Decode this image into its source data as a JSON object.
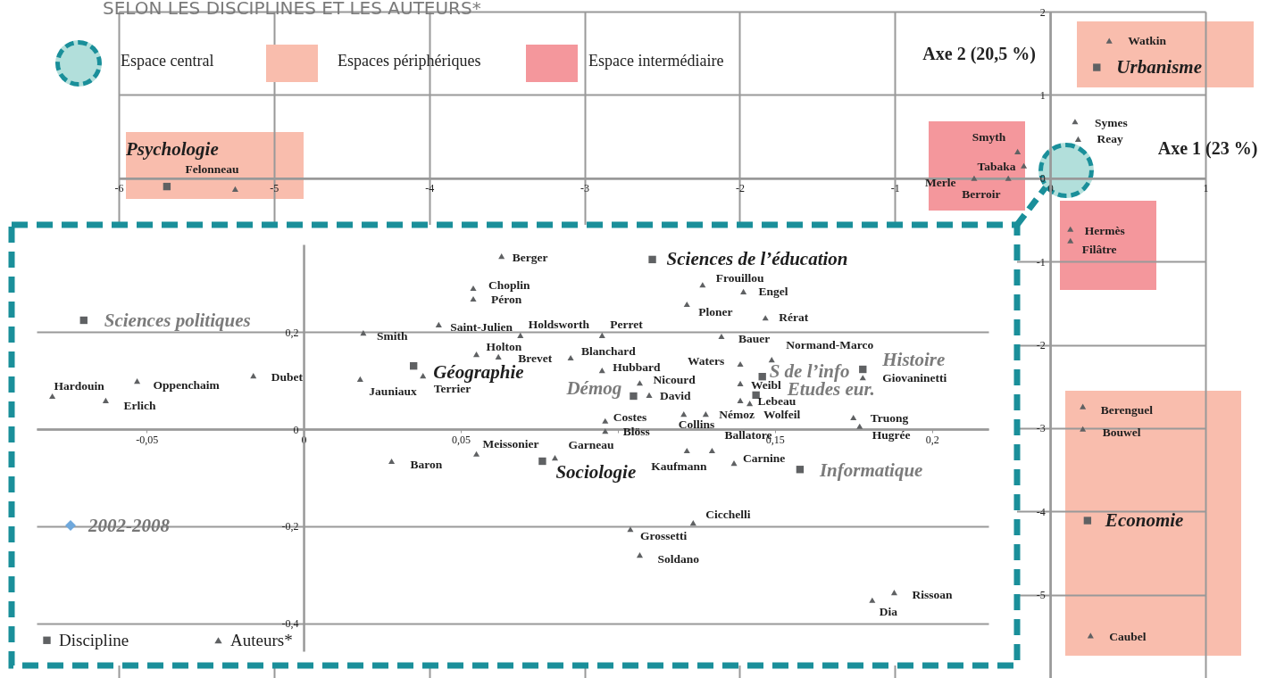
{
  "chart_data": [
    {
      "type": "scatter",
      "title": "SELON LES DISCIPLINES ET LES AUTEURS*",
      "xlabel": "Axe 1 (23 %)",
      "ylabel": "Axe 2 (20,5 %)",
      "xlim": [
        -6,
        1
      ],
      "ylim": [
        -6,
        2
      ],
      "xticks": [
        -6,
        -5,
        -4,
        -3,
        -2,
        -1,
        0,
        1
      ],
      "yticks": [
        -5,
        -4,
        -3,
        -2,
        -1,
        0,
        1,
        2
      ],
      "grid": true,
      "annotations": [
        "Espace central",
        "Espaces périphériques",
        "Espace intermédiaire"
      ],
      "series": [
        {
          "color": "#5f6163",
          "marker": "square",
          "x": [
            -5.69,
            0.3,
            0.24
          ],
          "values": [
            -0.1,
            1.33,
            -4.11
          ],
          "value_labels": [
            "Psychologie",
            "Urbanisme",
            "Economie"
          ]
        },
        {
          "color": "#5f6163",
          "marker": "triangle",
          "x": [
            -5.25,
            0.38,
            0.16,
            0.18,
            -0.21,
            -0.17,
            -0.49,
            -0.27,
            0.13,
            0.13,
            0.21,
            0.21,
            0.26
          ],
          "values": [
            -0.13,
            1.65,
            0.68,
            0.47,
            0.32,
            0.15,
            0.0,
            0.0,
            -0.61,
            -0.75,
            -2.74,
            -3.01,
            -5.49
          ],
          "value_labels": [
            "Felonneau",
            "Watkin",
            "Symes",
            "Reay",
            "Smyth",
            "Tabaka",
            "Merle",
            "Berroir",
            "Hermès",
            "Filâtre",
            "Berenguel",
            "Bouwel",
            "Caubel"
          ]
        }
      ]
    },
    {
      "type": "scatter",
      "xlim": [
        -0.085,
        0.218
      ],
      "ylim": [
        -0.457,
        0.38
      ],
      "xticks": [
        {
          "value": -0.05,
          "label": "-0,05"
        },
        0,
        {
          "value": 0.05,
          "label": "0,05"
        },
        {
          "value": 0.1,
          "label": null
        },
        {
          "value": 0.15,
          "label": "0,15"
        },
        {
          "value": 0.2,
          "label": "0,2"
        }
      ],
      "yticks": [
        {
          "value": -0.4,
          "label": "-0,4"
        },
        {
          "value": -0.2,
          "label": "-0,2"
        },
        0,
        {
          "value": 0.2,
          "label": "0,2"
        }
      ],
      "grid": "y",
      "legend": "bottom left",
      "annotations": [
        "2002-2008"
      ],
      "series": [
        {
          "name": "Discipline",
          "color": "#5f6163",
          "marker": "square",
          "x": [
            -0.07,
            0.035,
            0.111,
            0.105,
            0.076,
            0.146,
            0.144,
            0.178,
            0.158
          ],
          "values": [
            0.224,
            0.13,
            0.349,
            0.068,
            -0.066,
            0.108,
            0.07,
            0.123,
            -0.083
          ],
          "value_labels": [
            "Sciences politiques",
            "Géographie",
            "Sciences de l’éducation",
            "Démog",
            "Sociologie",
            "S de l’info",
            "Etudes eur.",
            "Histoire",
            "Informatique"
          ]
        },
        {
          "name": "Auteurs*",
          "color": "#5f6163",
          "marker": "triangle",
          "x": [
            0.063,
            0.054,
            0.054,
            0.019,
            0.043,
            0.069,
            0.095,
            0.055,
            0.062,
            0.085,
            0.095,
            0.107,
            0.11,
            0.127,
            0.14,
            0.122,
            0.147,
            0.133,
            0.149,
            0.139,
            0.139,
            0.139,
            0.142,
            0.128,
            0.121,
            0.178,
            0.175,
            0.177,
            0.096,
            0.096,
            0.055,
            0.08,
            0.122,
            0.13,
            0.137,
            0.028,
            0.018,
            0.038,
            -0.016,
            -0.053,
            -0.063,
            -0.08,
            0.124,
            0.104,
            0.107,
            0.181,
            0.188
          ],
          "values": [
            0.356,
            0.29,
            0.268,
            0.198,
            0.215,
            0.193,
            0.193,
            0.154,
            0.149,
            0.147,
            0.121,
            0.095,
            0.07,
            0.297,
            0.283,
            0.257,
            0.229,
            0.191,
            0.143,
            0.134,
            0.094,
            0.059,
            0.053,
            0.031,
            0.031,
            0.106,
            0.024,
            0.006,
            0.017,
            -0.004,
            -0.051,
            -0.059,
            -0.044,
            -0.044,
            -0.07,
            -0.066,
            0.103,
            0.11,
            0.11,
            0.099,
            0.059,
            0.068,
            -0.193,
            -0.206,
            -0.259,
            -0.352,
            -0.336
          ],
          "value_labels": [
            "Berger",
            "Choplin",
            "Péron",
            "Smith",
            "Saint-Julien",
            "Holdsworth",
            "Perret",
            "Holton",
            "Brevet",
            "Blanchard",
            "Hubbard",
            "Nicourd",
            "David",
            "Frouillou",
            "Engel",
            "Ploner",
            "Rérat",
            "Bauer",
            "Normand-Marco",
            "Waters",
            "Weibl",
            "Wolfeil",
            "Lebeau",
            "Némoz",
            "Collins",
            "Giovaninetti",
            "Truong",
            "Hugrée",
            "Costes",
            "Blöss",
            "Meissonier",
            "Garneau",
            "Kaufmann",
            "Ballatore",
            "Carnine",
            "Baron",
            "Jauniaux",
            "Terrier",
            "Dubet",
            "Oppenchaim",
            "Erlich",
            "Hardouin",
            "Cicchelli",
            "Grossetti",
            "Soldano",
            "Dia",
            "Rissoan"
          ]
        }
      ]
    }
  ]
}
